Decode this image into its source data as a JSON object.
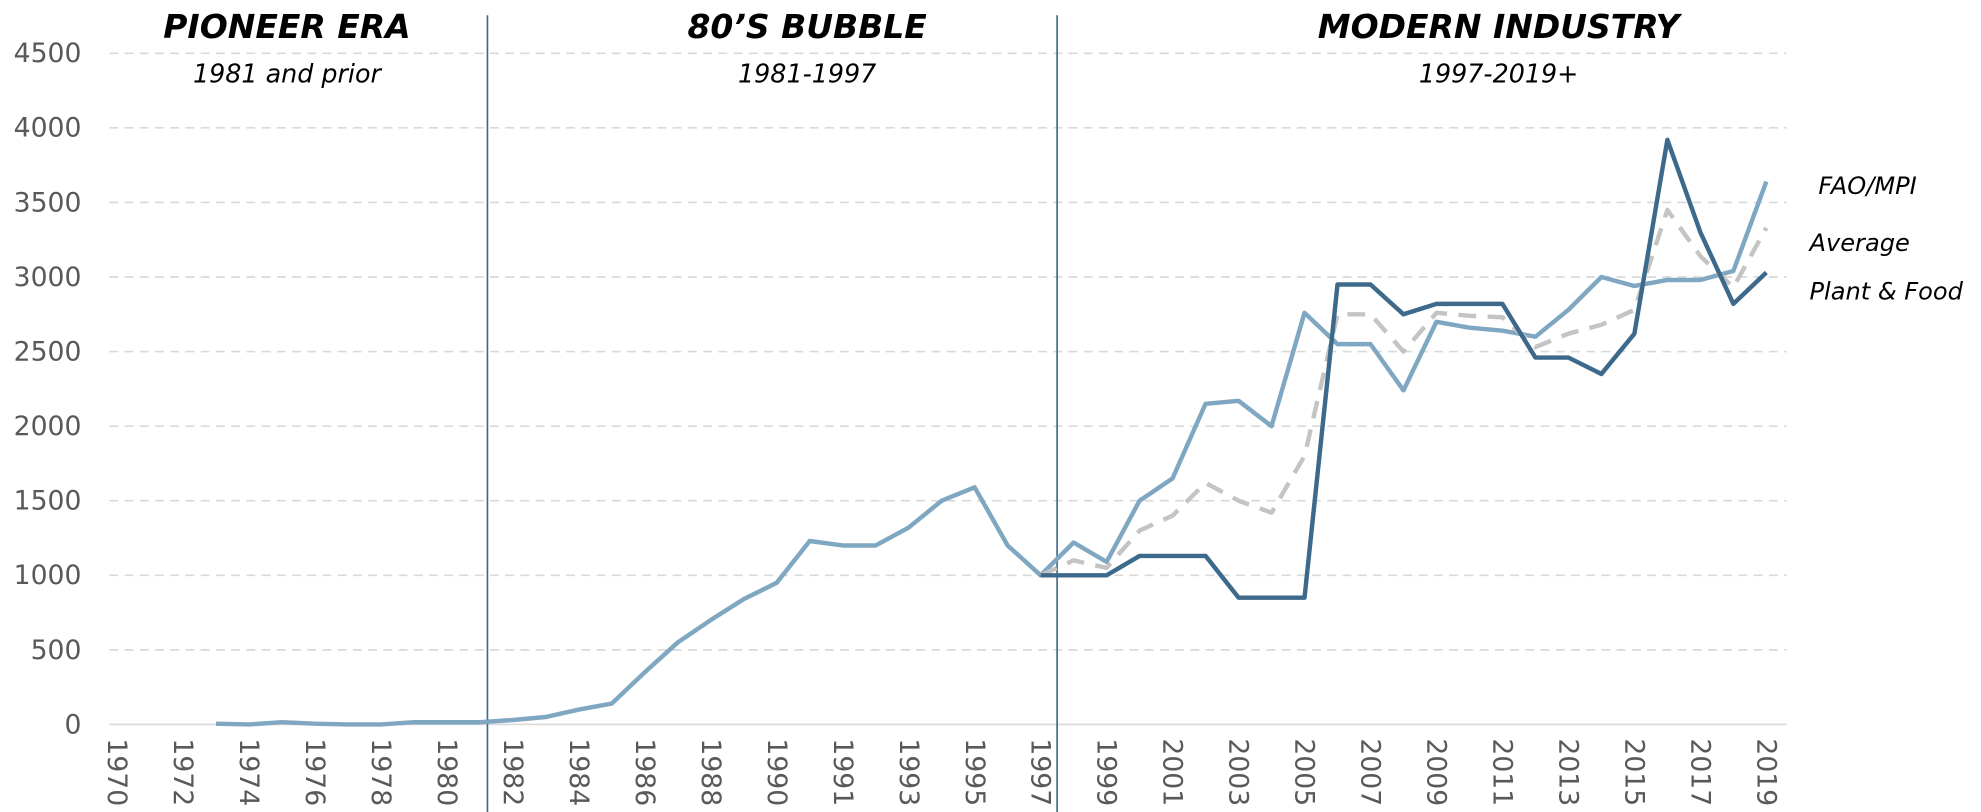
{
  "chart_data": {
    "type": "line",
    "sections": [
      {
        "title": "PIONEER ERA",
        "subtitle": "1981 and prior"
      },
      {
        "title": "80’S BUBBLE",
        "subtitle": "1981-1997"
      },
      {
        "title": "MODERN INDUSTRY",
        "subtitle": "1997-2019+"
      }
    ],
    "categories": [
      "1970",
      null,
      "1972",
      null,
      "1974",
      null,
      "1976",
      null,
      "1978",
      null,
      "1980",
      null,
      "1982",
      null,
      "1984",
      null,
      "1986",
      null,
      "1988",
      null,
      "1990",
      null,
      "1991",
      null,
      "1993",
      null,
      "1995",
      null,
      "1997",
      null,
      "1999",
      null,
      "2001",
      null,
      "2003",
      null,
      "2005",
      null,
      "2007",
      null,
      "2009",
      null,
      "2011",
      null,
      "2013",
      null,
      "2015",
      null,
      "2017",
      null,
      "2019"
    ],
    "series": [
      {
        "name": "FAO/MPI",
        "color": "#7fa7c1",
        "dash": false,
        "values": [
          null,
          null,
          null,
          5,
          0,
          15,
          5,
          0,
          0,
          15,
          15,
          15,
          30,
          50,
          100,
          140,
          350,
          550,
          700,
          840,
          950,
          1230,
          1200,
          1200,
          1320,
          1500,
          1590,
          1200,
          1000,
          1220,
          1090,
          1500,
          1650,
          2150,
          2170,
          2000,
          2760,
          2550,
          2550,
          2240,
          2700,
          2660,
          2640,
          2600,
          2780,
          3000,
          2940,
          2980,
          2980,
          3040,
          3640
        ]
      },
      {
        "name": "Average",
        "color": "#c4c4c4",
        "dash": true,
        "values": [
          null,
          null,
          null,
          null,
          null,
          null,
          null,
          null,
          null,
          null,
          null,
          null,
          null,
          null,
          null,
          null,
          null,
          null,
          null,
          null,
          null,
          null,
          null,
          null,
          null,
          null,
          null,
          null,
          1000,
          1100,
          1050,
          1300,
          1400,
          1620,
          1500,
          1420,
          1800,
          2750,
          2750,
          2500,
          2760,
          2740,
          2730,
          2530,
          2620,
          2680,
          2780,
          3450,
          3140,
          2930,
          3330
        ]
      },
      {
        "name": "Plant & Food",
        "color": "#3d6a8a",
        "dash": false,
        "values": [
          null,
          null,
          null,
          null,
          null,
          null,
          null,
          null,
          null,
          null,
          null,
          null,
          null,
          null,
          null,
          null,
          null,
          null,
          null,
          null,
          null,
          null,
          null,
          null,
          null,
          null,
          null,
          null,
          1000,
          1000,
          1000,
          1130,
          1130,
          1130,
          850,
          850,
          850,
          2950,
          2950,
          2750,
          2820,
          2820,
          2820,
          2460,
          2460,
          2350,
          2620,
          3920,
          3300,
          2820,
          3030
        ]
      }
    ],
    "ylim": [
      0,
      4500
    ],
    "yticks": [
      0,
      500,
      1000,
      1500,
      2000,
      2500,
      3000,
      3500,
      4000,
      4500
    ],
    "grid": true
  }
}
